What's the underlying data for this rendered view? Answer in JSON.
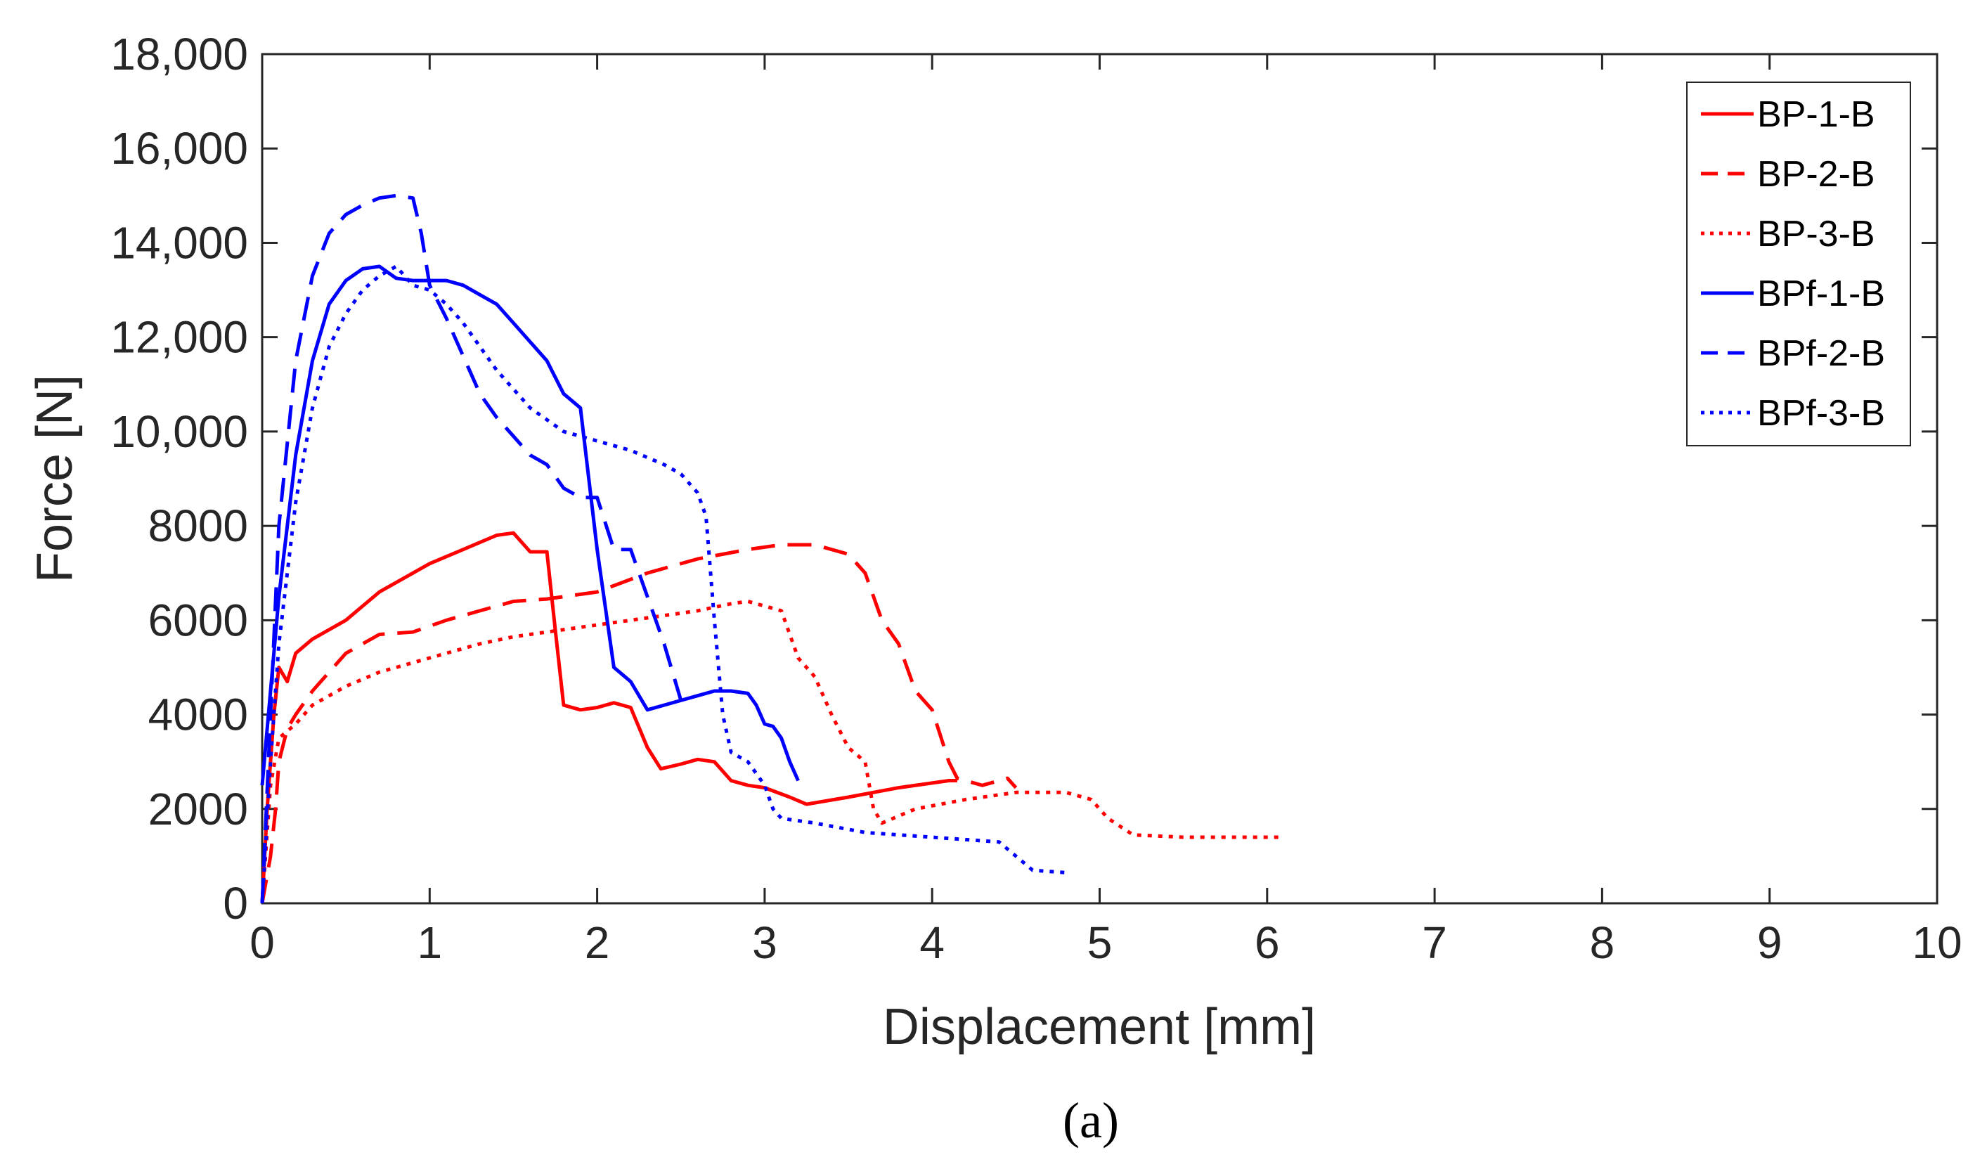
{
  "chart_data": {
    "type": "line",
    "title": "",
    "xlabel": "Displacement [mm]",
    "ylabel": "Force [N]",
    "xlim": [
      0,
      10
    ],
    "ylim": [
      0,
      18000
    ],
    "grid": false,
    "legend_position": "top-right",
    "xticks": [
      0,
      1,
      2,
      3,
      4,
      5,
      6,
      7,
      8,
      9,
      10
    ],
    "xtick_labels": [
      "0",
      "1",
      "2",
      "3",
      "4",
      "5",
      "6",
      "7",
      "8",
      "9",
      "10"
    ],
    "yticks": [
      0,
      2000,
      4000,
      6000,
      8000,
      10000,
      12000,
      14000,
      16000,
      18000
    ],
    "ytick_labels": [
      "0",
      "2000",
      "4000",
      "6000",
      "8000",
      "10,000",
      "12,000",
      "14,000",
      "16,000",
      "18,000"
    ],
    "series": [
      {
        "name": "BP-1-B",
        "color": "#ff0000",
        "style": "solid",
        "x": [
          0,
          0.03,
          0.07,
          0.1,
          0.15,
          0.2,
          0.3,
          0.5,
          0.7,
          1.0,
          1.2,
          1.4,
          1.5,
          1.6,
          1.7,
          1.75,
          1.8,
          1.9,
          2.0,
          2.1,
          2.2,
          2.3,
          2.38,
          2.5,
          2.6,
          2.7,
          2.8,
          2.9,
          3.0,
          3.15,
          3.25,
          3.5,
          3.8,
          4.1,
          4.15
        ],
        "y": [
          0,
          2000,
          4000,
          5000,
          4700,
          5300,
          5600,
          6000,
          6600,
          7200,
          7500,
          7800,
          7850,
          7450,
          7450,
          5800,
          4200,
          4100,
          4150,
          4250,
          4150,
          3300,
          2850,
          2950,
          3050,
          3000,
          2600,
          2500,
          2450,
          2250,
          2100,
          2250,
          2450,
          2600,
          2600
        ]
      },
      {
        "name": "BP-2-B",
        "color": "#ff0000",
        "style": "dashed",
        "x": [
          0,
          0.05,
          0.08,
          0.1,
          0.15,
          0.2,
          0.3,
          0.5,
          0.7,
          0.9,
          1.1,
          1.3,
          1.5,
          1.7,
          2.0,
          2.3,
          2.6,
          2.9,
          3.1,
          3.3,
          3.5,
          3.6,
          3.7,
          3.8,
          3.9,
          4.0,
          4.1,
          4.15,
          4.3,
          4.45,
          4.5
        ],
        "y": [
          0,
          1000,
          2000,
          3000,
          3700,
          4000,
          4500,
          5300,
          5700,
          5750,
          6000,
          6200,
          6400,
          6450,
          6600,
          7000,
          7300,
          7500,
          7600,
          7600,
          7400,
          7000,
          6000,
          5500,
          4500,
          4100,
          3000,
          2650,
          2500,
          2650,
          2450
        ]
      },
      {
        "name": "BP-3-B",
        "color": "#ff0000",
        "style": "dotted",
        "x": [
          0,
          0.05,
          0.1,
          0.2,
          0.3,
          0.5,
          0.7,
          0.9,
          1.1,
          1.3,
          1.5,
          1.7,
          2.0,
          2.3,
          2.6,
          2.8,
          2.9,
          3.0,
          3.1,
          3.2,
          3.3,
          3.4,
          3.5,
          3.6,
          3.65,
          3.7,
          3.9,
          4.2,
          4.5,
          4.8,
          4.95,
          5.05,
          5.2,
          5.5,
          6.0,
          6.1
        ],
        "y": [
          0,
          2500,
          3500,
          3800,
          4200,
          4600,
          4900,
          5100,
          5300,
          5500,
          5650,
          5750,
          5900,
          6050,
          6200,
          6350,
          6400,
          6300,
          6200,
          5200,
          4800,
          4000,
          3300,
          3000,
          2000,
          1700,
          2000,
          2200,
          2350,
          2350,
          2200,
          1800,
          1450,
          1400,
          1400,
          1400
        ]
      },
      {
        "name": "BPf-1-B",
        "color": "#0000ff",
        "style": "solid",
        "x": [
          0,
          0.05,
          0.1,
          0.2,
          0.3,
          0.4,
          0.5,
          0.6,
          0.7,
          0.8,
          0.9,
          1.0,
          1.1,
          1.2,
          1.3,
          1.4,
          1.5,
          1.6,
          1.7,
          1.8,
          1.9,
          2.0,
          2.1,
          2.2,
          2.3,
          2.4,
          2.5,
          2.6,
          2.7,
          2.8,
          2.9,
          2.95,
          3.0,
          3.05,
          3.1,
          3.15,
          3.2
        ],
        "y": [
          2500,
          4500,
          6500,
          9500,
          11500,
          12700,
          13200,
          13450,
          13500,
          13250,
          13200,
          13200,
          13200,
          13100,
          12900,
          12700,
          12300,
          11900,
          11500,
          10800,
          10500,
          7500,
          5000,
          4700,
          4100,
          4200,
          4300,
          4400,
          4500,
          4500,
          4450,
          4200,
          3800,
          3750,
          3500,
          3000,
          2600
        ]
      },
      {
        "name": "BPf-2-B",
        "color": "#0000ff",
        "style": "dashed",
        "x": [
          0,
          0.05,
          0.1,
          0.2,
          0.3,
          0.4,
          0.5,
          0.6,
          0.7,
          0.8,
          0.9,
          0.95,
          1.0,
          1.1,
          1.2,
          1.3,
          1.4,
          1.5,
          1.6,
          1.7,
          1.8,
          1.9,
          2.0,
          2.1,
          2.15,
          2.2,
          2.3,
          2.4,
          2.5
        ],
        "y": [
          0,
          4000,
          8000,
          11500,
          13300,
          14200,
          14600,
          14800,
          14950,
          15000,
          14950,
          14200,
          13100,
          12400,
          11600,
          10800,
          10300,
          9900,
          9500,
          9300,
          8800,
          8600,
          8600,
          7500,
          7500,
          7500,
          6500,
          5500,
          4300
        ]
      },
      {
        "name": "BPf-3-B",
        "color": "#0000ff",
        "style": "dotted",
        "x": [
          0,
          0.05,
          0.1,
          0.2,
          0.3,
          0.4,
          0.5,
          0.6,
          0.7,
          0.8,
          0.9,
          1.0,
          1.1,
          1.2,
          1.4,
          1.6,
          1.8,
          2.0,
          2.2,
          2.4,
          2.5,
          2.6,
          2.65,
          2.7,
          2.75,
          2.8,
          2.9,
          3.0,
          3.05,
          3.1,
          3.3,
          3.6,
          4.0,
          4.4,
          4.5,
          4.6,
          4.8
        ],
        "y": [
          0,
          3000,
          5500,
          8500,
          10500,
          11800,
          12500,
          13000,
          13300,
          13500,
          13100,
          13000,
          12700,
          12300,
          11300,
          10500,
          10000,
          9800,
          9600,
          9300,
          9100,
          8700,
          8200,
          6000,
          4000,
          3200,
          3000,
          2500,
          2000,
          1800,
          1700,
          1500,
          1400,
          1300,
          1000,
          700,
          650
        ]
      }
    ],
    "caption": "(a)"
  }
}
